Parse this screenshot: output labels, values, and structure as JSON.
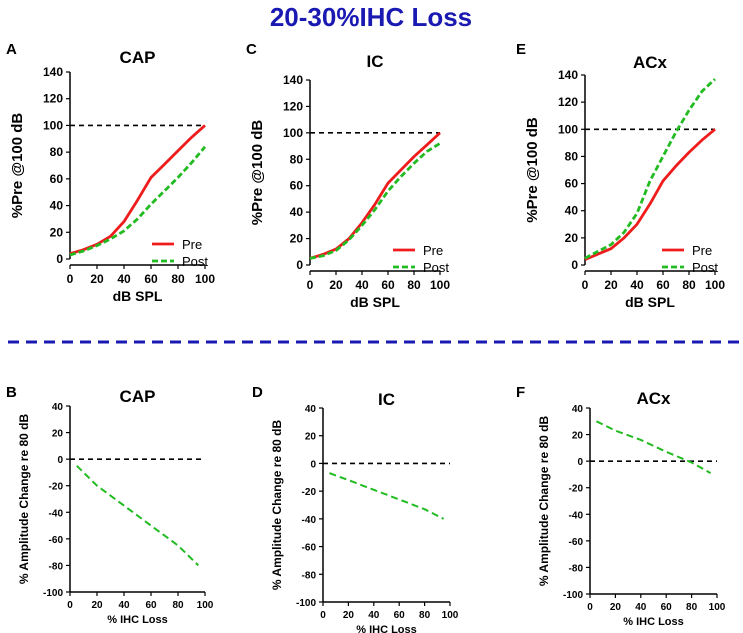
{
  "figure_title": "20-30%IHC Loss",
  "colors": {
    "title": "#1a1ab3",
    "pre": "#ee1c1c",
    "post": "#22bb22",
    "reference": "#000000",
    "separator": "#1a1ab3"
  },
  "chart_data": [
    {
      "id": "A",
      "letter": "A",
      "type": "line",
      "title": "CAP",
      "xlabel": "dB SPL",
      "ylabel": "%Pre @100 dB",
      "xlim": [
        0,
        100
      ],
      "ylim": [
        0,
        140
      ],
      "xticks": [
        "0",
        "20",
        "40",
        "60",
        "80",
        "100"
      ],
      "yticks": [
        "0",
        "20",
        "40",
        "60",
        "80",
        "100",
        "120",
        "140"
      ],
      "reference_line": 100,
      "series": [
        {
          "name": "Pre",
          "style": "solid",
          "x": [
            0,
            10,
            20,
            30,
            40,
            50,
            60,
            70,
            80,
            90,
            100
          ],
          "y": [
            4,
            7,
            11,
            17,
            28,
            44,
            61,
            71,
            81,
            91,
            100
          ]
        },
        {
          "name": "Post",
          "style": "dashed",
          "x": [
            0,
            10,
            20,
            30,
            40,
            50,
            60,
            70,
            80,
            90,
            100
          ],
          "y": [
            3,
            6,
            10,
            15,
            21,
            30,
            41,
            51,
            61,
            72,
            84
          ]
        }
      ]
    },
    {
      "id": "C",
      "letter": "C",
      "type": "line",
      "title": "IC",
      "xlabel": "dB SPL",
      "ylabel": "%Pre @100 dB",
      "xlim": [
        0,
        100
      ],
      "ylim": [
        0,
        140
      ],
      "xticks": [
        "0",
        "20",
        "40",
        "60",
        "80",
        "100"
      ],
      "yticks": [
        "0",
        "20",
        "40",
        "60",
        "80",
        "100",
        "120",
        "140"
      ],
      "reference_line": 100,
      "series": [
        {
          "name": "Pre",
          "style": "solid",
          "x": [
            0,
            10,
            20,
            30,
            40,
            50,
            60,
            70,
            80,
            90,
            100
          ],
          "y": [
            5,
            8,
            12,
            20,
            32,
            46,
            62,
            72,
            82,
            91,
            100
          ]
        },
        {
          "name": "Post",
          "style": "dashed",
          "x": [
            0,
            10,
            20,
            30,
            40,
            50,
            60,
            70,
            80,
            90,
            100
          ],
          "y": [
            5,
            7,
            11,
            19,
            30,
            42,
            56,
            67,
            77,
            86,
            92
          ]
        }
      ]
    },
    {
      "id": "E",
      "letter": "E",
      "type": "line",
      "title": "ACx",
      "xlabel": "dB SPL",
      "ylabel": "%Pre @100 dB",
      "xlim": [
        0,
        100
      ],
      "ylim": [
        0,
        140
      ],
      "xticks": [
        "0",
        "20",
        "40",
        "60",
        "80",
        "100"
      ],
      "yticks": [
        "0",
        "20",
        "40",
        "60",
        "80",
        "100",
        "120",
        "140"
      ],
      "reference_line": 100,
      "series": [
        {
          "name": "Pre",
          "style": "solid",
          "x": [
            0,
            10,
            20,
            30,
            40,
            50,
            60,
            70,
            80,
            90,
            100
          ],
          "y": [
            4,
            8,
            12,
            20,
            30,
            45,
            62,
            73,
            83,
            92,
            100
          ]
        },
        {
          "name": "Post",
          "style": "dashed",
          "x": [
            0,
            10,
            20,
            30,
            40,
            50,
            60,
            70,
            80,
            90,
            100
          ],
          "y": [
            5,
            10,
            15,
            24,
            38,
            62,
            80,
            98,
            114,
            128,
            137
          ]
        }
      ]
    },
    {
      "id": "B",
      "letter": "B",
      "type": "line",
      "title": "CAP",
      "xlabel": "% IHC Loss",
      "ylabel": "% Amplitude Change re 80 dB",
      "xlim": [
        0,
        100
      ],
      "ylim": [
        -100,
        40
      ],
      "xticks": [
        "0",
        "20",
        "40",
        "60",
        "80",
        "100"
      ],
      "yticks": [
        "-100",
        "-80",
        "-60",
        "-40",
        "-20",
        "0",
        "20",
        "40"
      ],
      "reference_line": 0,
      "series": [
        {
          "name": "Post",
          "style": "dashed",
          "x": [
            5,
            20,
            40,
            60,
            80,
            95
          ],
          "y": [
            -5,
            -20,
            -35,
            -50,
            -65,
            -80
          ]
        }
      ]
    },
    {
      "id": "D",
      "letter": "D",
      "type": "line",
      "title": "IC",
      "xlabel": "% IHC Loss",
      "ylabel": "% Amplitude Change re 80 dB",
      "xlim": [
        0,
        100
      ],
      "ylim": [
        -100,
        40
      ],
      "xticks": [
        "0",
        "20",
        "40",
        "60",
        "80",
        "100"
      ],
      "yticks": [
        "-100",
        "-80",
        "-60",
        "-40",
        "-20",
        "0",
        "20",
        "40"
      ],
      "reference_line": 0,
      "series": [
        {
          "name": "Post",
          "style": "dashed",
          "x": [
            5,
            20,
            40,
            60,
            80,
            95
          ],
          "y": [
            -7,
            -12,
            -19,
            -26,
            -33,
            -40
          ]
        }
      ]
    },
    {
      "id": "F",
      "letter": "F",
      "type": "line",
      "title": "ACx",
      "xlabel": "% IHC Loss",
      "ylabel": "% Amplitude Change re 80 dB",
      "xlim": [
        0,
        100
      ],
      "ylim": [
        -100,
        40
      ],
      "xticks": [
        "0",
        "20",
        "40",
        "60",
        "80",
        "100"
      ],
      "yticks": [
        "-100",
        "-80",
        "-60",
        "-40",
        "-20",
        "0",
        "20",
        "40"
      ],
      "reference_line": 0,
      "series": [
        {
          "name": "Post",
          "style": "dashed",
          "x": [
            5,
            20,
            40,
            60,
            80,
            95
          ],
          "y": [
            30,
            23,
            16,
            7,
            -1,
            -9
          ]
        }
      ]
    }
  ]
}
